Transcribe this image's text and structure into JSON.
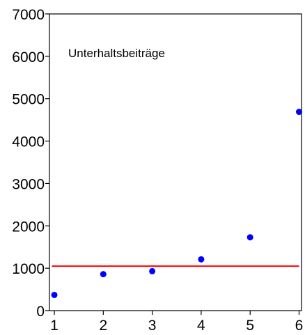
{
  "chart_data": {
    "type": "scatter",
    "annotation": "Unterhaltsbeiträge",
    "title": "",
    "xlabel": "",
    "ylabel": "",
    "xlim": [
      0.9,
      6.05
    ],
    "ylim": [
      0,
      7000
    ],
    "x_ticks": [
      1,
      2,
      3,
      4,
      5,
      6
    ],
    "y_ticks": [
      0,
      1000,
      2000,
      3000,
      4000,
      5000,
      6000,
      7000
    ],
    "series": [
      {
        "points": [
          {
            "x": 1,
            "y": 370
          },
          {
            "x": 2,
            "y": 860
          },
          {
            "x": 3,
            "y": 930
          },
          {
            "x": 4,
            "y": 1210
          },
          {
            "x": 5,
            "y": 1730
          },
          {
            "x": 6,
            "y": 4690
          }
        ],
        "color": "#0000ff"
      }
    ],
    "reference_line": {
      "y": 1050,
      "x_from": 0.95,
      "x_to": 6,
      "color": "#ff0000"
    },
    "grid": false,
    "legend": "none"
  }
}
